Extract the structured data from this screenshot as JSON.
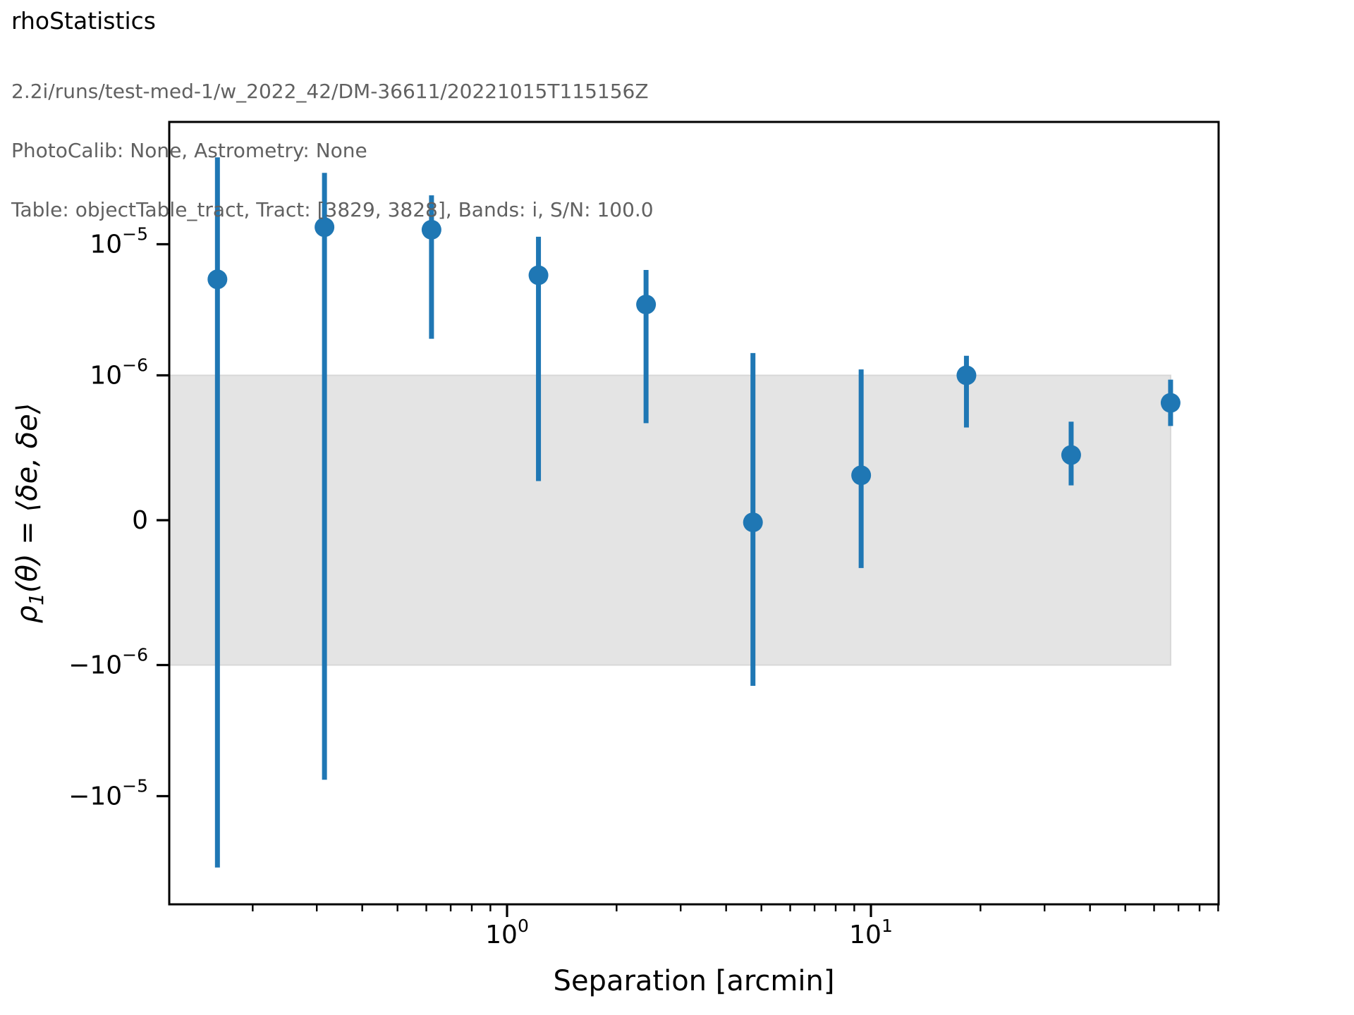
{
  "header": {
    "title": "rhoStatistics",
    "info_lines": [
      "2.2i/runs/test-med-1/w_2022_42/DM-36611/20221015T115156Z",
      "PhotoCalib: None, Astrometry: None",
      "Table: objectTable_tract, Tract: [3829, 3828], Bands: i, S/N: 100.0"
    ],
    "title_color": "#000000",
    "info_color": "#616161"
  },
  "chart_data": {
    "type": "scatter",
    "subtype": "errorbar",
    "xlabel": "Separation [arcmin]",
    "ylabel_parts": [
      {
        "t": "ρ"
      },
      {
        "t": "1",
        "sub": true
      },
      {
        "t": "(θ) = ⟨δe, δe⟩"
      }
    ],
    "x_scale": "log",
    "xlim": [
      0.118,
      90.3
    ],
    "y_scale": "symlog",
    "y_linthresh": 1e-06,
    "ylim": [
      -6.7e-05,
      8.6e-05
    ],
    "grid": false,
    "legend": null,
    "marker_color": "#1f77b4",
    "spine_color": "#000000",
    "band": {
      "y_min": -1e-06,
      "y_max": 1e-06,
      "x_min": 0.118,
      "x_max": 66.6,
      "fill": "#e4e4e4",
      "edge": "#d8d8d8"
    },
    "x_major_ticks": [
      {
        "v": 1,
        "main": "10",
        "sup": "0"
      },
      {
        "v": 10,
        "main": "10",
        "sup": "1"
      }
    ],
    "x_minor_ticks": [
      0.2,
      0.3,
      0.4,
      0.5,
      0.6,
      0.7,
      0.8,
      0.9,
      2,
      3,
      4,
      5,
      6,
      7,
      8,
      9,
      20,
      30,
      40,
      50,
      60,
      70,
      80,
      90
    ],
    "y_ticks": [
      {
        "v": 1e-05,
        "main": "10",
        "sup": "−5"
      },
      {
        "v": 1e-06,
        "main": "10",
        "sup": "−6"
      },
      {
        "v": 0,
        "main": "0",
        "sup": ""
      },
      {
        "v": -1e-06,
        "main": "−10",
        "sup": "−6"
      },
      {
        "v": -1e-05,
        "main": "−10",
        "sup": "−5"
      }
    ],
    "points": [
      {
        "x": 0.16,
        "y": 5.4e-06,
        "y_lo": -3.5e-05,
        "y_hi": 4.6e-05
      },
      {
        "x": 0.315,
        "y": 1.35e-05,
        "y_lo": -7.5e-06,
        "y_hi": 3.5e-05
      },
      {
        "x": 0.62,
        "y": 1.29e-05,
        "y_lo": 1.9e-06,
        "y_hi": 2.36e-05
      },
      {
        "x": 1.22,
        "y": 5.8e-06,
        "y_lo": 2.7e-07,
        "y_hi": 1.14e-05
      },
      {
        "x": 2.41,
        "y": 3.47e-06,
        "y_lo": 6.7e-07,
        "y_hi": 6.36e-06
      },
      {
        "x": 4.74,
        "y": -1.5e-08,
        "y_lo": -1.44e-06,
        "y_hi": 1.48e-06
      },
      {
        "x": 9.4,
        "y": 3.1e-07,
        "y_lo": -3.3e-07,
        "y_hi": 1.11e-06
      },
      {
        "x": 18.3,
        "y": 1e-06,
        "y_lo": 6.4e-07,
        "y_hi": 1.41e-06
      },
      {
        "x": 35.5,
        "y": 4.5e-07,
        "y_lo": 2.4e-07,
        "y_hi": 6.8e-07
      },
      {
        "x": 66.6,
        "y": 8.1e-07,
        "y_lo": 6.5e-07,
        "y_hi": 9.7e-07
      }
    ]
  }
}
